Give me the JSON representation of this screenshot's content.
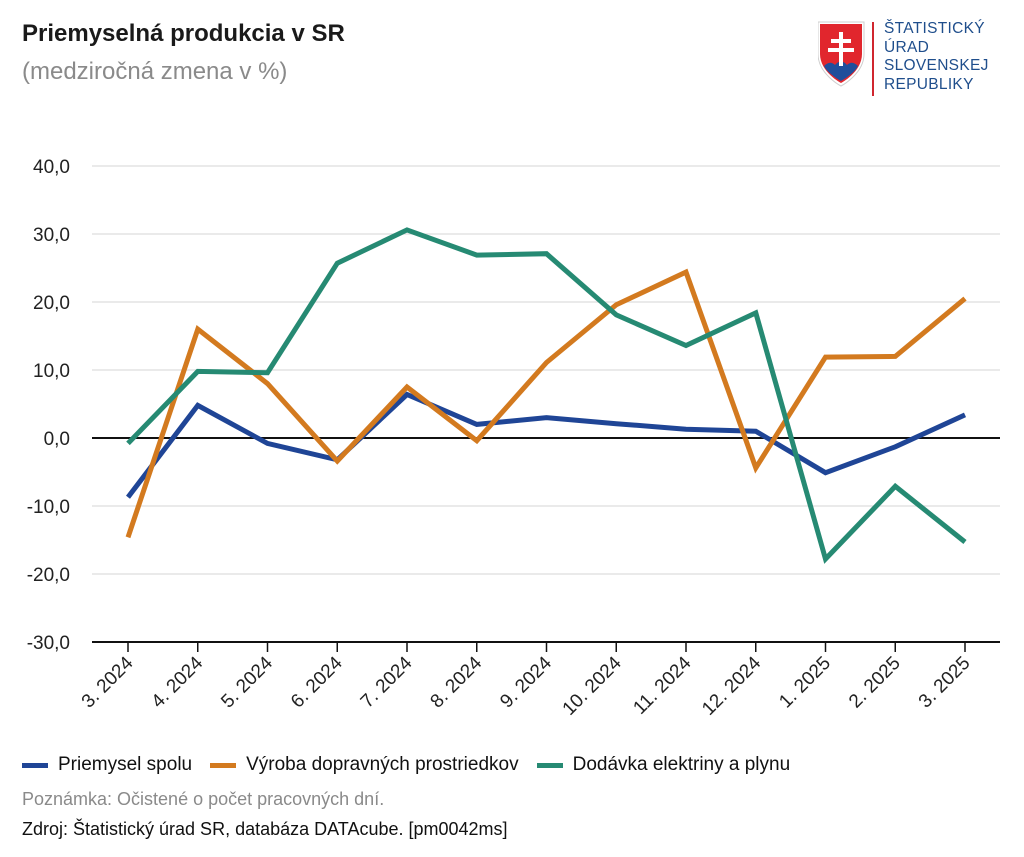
{
  "header": {
    "title": "Priemyselná produkcia v SR",
    "subtitle": "(medziročná zmena v %)"
  },
  "logo": {
    "lines": [
      "ŠTATISTICKÝ",
      "ÚRAD",
      "SLOVENSKEJ",
      "REPUBLIKY"
    ],
    "color": "#1f4e8c",
    "accent": "#d0262f"
  },
  "chart_data": {
    "type": "line",
    "categories": [
      "3. 2024",
      "4. 2024",
      "5. 2024",
      "6. 2024",
      "7. 2024",
      "8. 2024",
      "9. 2024",
      "10. 2024",
      "11. 2024",
      "12. 2024",
      "1. 2025",
      "2. 2025",
      "3. 2025"
    ],
    "series": [
      {
        "name": "Priemysel spolu",
        "color": "#1f4596",
        "values": [
          -8.7,
          4.8,
          -0.8,
          -3.2,
          6.4,
          2.0,
          3.0,
          2.1,
          1.3,
          1.0,
          -5.1,
          -1.3,
          3.4
        ]
      },
      {
        "name": "Výroba dopravných prostriedkov",
        "color": "#d37a1f",
        "values": [
          -14.6,
          16.0,
          8.0,
          -3.4,
          7.5,
          -0.4,
          11.1,
          19.6,
          24.4,
          -4.4,
          11.9,
          12.0,
          20.5
        ]
      },
      {
        "name": "Dodávka elektriny a plynu",
        "color": "#268a73",
        "values": [
          -0.8,
          9.8,
          9.6,
          25.7,
          30.6,
          26.9,
          27.1,
          18.1,
          13.6,
          18.4,
          -17.8,
          -7.1,
          -15.3
        ]
      }
    ],
    "yticks": [
      "40,0",
      "30,0",
      "20,0",
      "10,0",
      "0,0",
      "-10,0",
      "-20,0",
      "-30,0"
    ],
    "ylim": [
      -30,
      40
    ],
    "grid": true,
    "legend": "bottom-left"
  },
  "footer": {
    "note": "Poznámka: Očistené o počet pracovných dní.",
    "source": "Zdroj: Štatistický úrad SR, databáza DATAcube. [pm0042ms]"
  }
}
